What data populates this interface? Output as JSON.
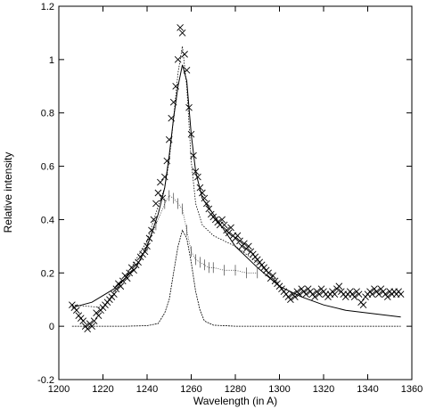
{
  "chart_data": {
    "type": "line",
    "title": "",
    "xlabel": "Wavelength (in A)",
    "ylabel": "Relative intensity",
    "xlim": [
      1200,
      1360
    ],
    "ylim": [
      -0.2,
      1.2
    ],
    "x_ticks": [
      1200,
      1220,
      1240,
      1260,
      1280,
      1300,
      1320,
      1340,
      1360
    ],
    "y_ticks": [
      -0.2,
      0,
      0.2,
      0.4,
      0.6,
      0.8,
      1,
      1.2
    ],
    "x_tick_labels": [
      "1200",
      "1220",
      "1240",
      "1260",
      "1280",
      "1300",
      "1320",
      "1340",
      "1360"
    ],
    "y_tick_labels": [
      "-0.2",
      "0",
      "0.2",
      "0.4",
      "0.6",
      "0.8",
      "1",
      "1.2"
    ],
    "grid": false,
    "legend": "none",
    "series": [
      {
        "kind": "scatter-x",
        "x": [
          1206,
          1207,
          1208,
          1209,
          1210,
          1211,
          1212,
          1213,
          1214,
          1215,
          1216,
          1217,
          1218,
          1219,
          1220,
          1221,
          1222,
          1223,
          1224,
          1225,
          1226,
          1227,
          1228,
          1229,
          1230,
          1231,
          1232,
          1233,
          1234,
          1235,
          1236,
          1237,
          1238,
          1239,
          1240,
          1241,
          1242,
          1243,
          1244,
          1245,
          1246,
          1247,
          1248,
          1249,
          1250,
          1251,
          1252,
          1253,
          1254,
          1255,
          1256,
          1257,
          1258,
          1259,
          1260,
          1261,
          1262,
          1263,
          1264,
          1265,
          1266,
          1267,
          1268,
          1269,
          1270,
          1271,
          1272,
          1273,
          1274,
          1275,
          1276,
          1277,
          1278,
          1279,
          1280,
          1281,
          1282,
          1283,
          1284,
          1285,
          1286,
          1287,
          1288,
          1289,
          1290,
          1291,
          1292,
          1293,
          1294,
          1295,
          1296,
          1297,
          1298,
          1299,
          1300,
          1301,
          1302,
          1303,
          1304,
          1305,
          1306,
          1307,
          1308,
          1309,
          1310,
          1311,
          1312,
          1313,
          1314,
          1315,
          1316,
          1317,
          1318,
          1319,
          1320,
          1321,
          1322,
          1323,
          1324,
          1325,
          1326,
          1327,
          1328,
          1329,
          1330,
          1331,
          1332,
          1333,
          1334,
          1335,
          1336,
          1337,
          1338,
          1339,
          1340,
          1341,
          1342,
          1343,
          1344,
          1345,
          1346,
          1347,
          1348,
          1349,
          1350,
          1351,
          1352,
          1353,
          1354,
          1355
        ],
        "y": [
          0.08,
          0.07,
          0.06,
          0.04,
          0.03,
          0.02,
          0.0,
          -0.01,
          0.01,
          0.0,
          0.02,
          0.05,
          0.04,
          0.06,
          0.07,
          0.08,
          0.09,
          0.1,
          0.11,
          0.12,
          0.14,
          0.16,
          0.15,
          0.17,
          0.19,
          0.18,
          0.2,
          0.22,
          0.21,
          0.23,
          0.24,
          0.26,
          0.27,
          0.28,
          0.3,
          0.33,
          0.36,
          0.4,
          0.46,
          0.5,
          0.54,
          0.48,
          0.56,
          0.62,
          0.7,
          0.78,
          0.84,
          0.9,
          1.0,
          1.12,
          1.1,
          1.02,
          0.96,
          0.82,
          0.72,
          0.64,
          0.58,
          0.56,
          0.52,
          0.5,
          0.48,
          0.46,
          0.44,
          0.42,
          0.41,
          0.4,
          0.39,
          0.38,
          0.4,
          0.38,
          0.36,
          0.35,
          0.37,
          0.34,
          0.33,
          0.34,
          0.32,
          0.3,
          0.31,
          0.29,
          0.3,
          0.28,
          0.27,
          0.26,
          0.25,
          0.24,
          0.23,
          0.22,
          0.21,
          0.2,
          0.18,
          0.19,
          0.17,
          0.16,
          0.15,
          0.14,
          0.13,
          0.12,
          0.11,
          0.1,
          0.12,
          0.11,
          0.13,
          0.12,
          0.14,
          0.13,
          0.12,
          0.14,
          0.13,
          0.12,
          0.11,
          0.13,
          0.12,
          0.14,
          0.13,
          0.12,
          0.11,
          0.12,
          0.13,
          0.12,
          0.14,
          0.15,
          0.13,
          0.12,
          0.11,
          0.12,
          0.13,
          0.12,
          0.11,
          0.13,
          0.12,
          0.09,
          0.08,
          0.11,
          0.12,
          0.13,
          0.12,
          0.14,
          0.13,
          0.12,
          0.14,
          0.13,
          0.12,
          0.11,
          0.13,
          0.12,
          0.13,
          0.12,
          0.13,
          0.12
        ]
      },
      {
        "kind": "dotted-line",
        "x": [
          1206,
          1220,
          1230,
          1240,
          1245,
          1248,
          1250,
          1252,
          1254,
          1256,
          1258,
          1260,
          1262,
          1265,
          1270,
          1280,
          1290,
          1300
        ],
        "y": [
          0.08,
          0.07,
          0.18,
          0.32,
          0.45,
          0.52,
          0.62,
          0.78,
          0.95,
          1.05,
          0.9,
          0.62,
          0.46,
          0.38,
          0.34,
          0.3,
          0.24,
          0.16
        ]
      },
      {
        "kind": "errorbar-line",
        "x": [
          1240,
          1244,
          1248,
          1250,
          1252,
          1254,
          1256,
          1258,
          1260,
          1262,
          1264,
          1266,
          1268,
          1270,
          1275,
          1280,
          1285,
          1290
        ],
        "y": [
          0.3,
          0.38,
          0.46,
          0.49,
          0.48,
          0.46,
          0.44,
          0.36,
          0.28,
          0.25,
          0.24,
          0.23,
          0.22,
          0.22,
          0.21,
          0.21,
          0.2,
          0.2
        ]
      },
      {
        "kind": "solid-line",
        "x": [
          1206,
          1215,
          1225,
          1235,
          1240,
          1245,
          1248,
          1250,
          1252,
          1254,
          1256,
          1258,
          1260,
          1262,
          1265,
          1270,
          1275,
          1280,
          1290,
          1300,
          1310,
          1320,
          1330,
          1340,
          1350,
          1355
        ],
        "y": [
          0.07,
          0.09,
          0.14,
          0.22,
          0.3,
          0.42,
          0.52,
          0.64,
          0.78,
          0.9,
          0.98,
          0.92,
          0.72,
          0.58,
          0.48,
          0.42,
          0.36,
          0.3,
          0.22,
          0.15,
          0.11,
          0.08,
          0.06,
          0.05,
          0.04,
          0.035
        ]
      },
      {
        "kind": "gaussian-line",
        "x": [
          1206,
          1230,
          1240,
          1245,
          1248,
          1250,
          1252,
          1254,
          1256,
          1258,
          1260,
          1262,
          1264,
          1266,
          1270,
          1280,
          1300,
          1355
        ],
        "y": [
          0.0,
          0.0,
          0.002,
          0.01,
          0.05,
          0.1,
          0.2,
          0.3,
          0.36,
          0.33,
          0.24,
          0.13,
          0.06,
          0.02,
          0.004,
          0.0,
          0.0,
          0.0
        ]
      }
    ]
  }
}
